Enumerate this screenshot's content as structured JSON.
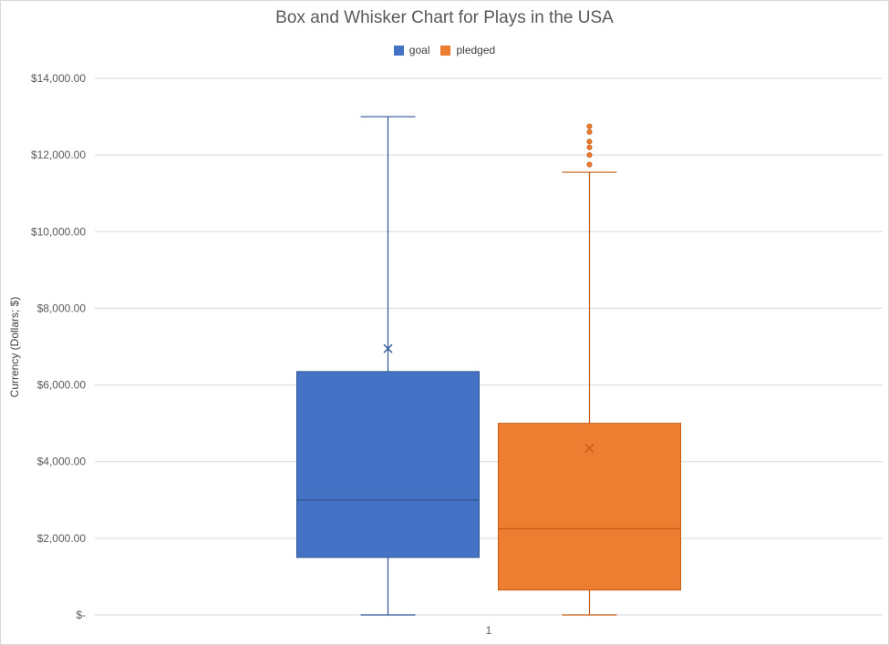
{
  "chart_data": {
    "type": "boxplot",
    "title": "Box and Whisker Chart for Plays in the USA",
    "ylabel": "Currency (Dollars; $)",
    "xlabel": "",
    "categories": [
      "1"
    ],
    "ylim": [
      0,
      14000
    ],
    "yticks": [
      {
        "value": 0,
        "label": "$-"
      },
      {
        "value": 2000,
        "label": "$2,000.00"
      },
      {
        "value": 4000,
        "label": "$4,000.00"
      },
      {
        "value": 6000,
        "label": "$6,000.00"
      },
      {
        "value": 8000,
        "label": "$8,000.00"
      },
      {
        "value": 10000,
        "label": "$10,000.00"
      },
      {
        "value": 12000,
        "label": "$12,000.00"
      },
      {
        "value": 14000,
        "label": "$14,000.00"
      }
    ],
    "grid": true,
    "legend_position": "top",
    "series": [
      {
        "name": "goal",
        "color": "#4472C4",
        "min": 0,
        "q1": 1500,
        "median": 3000,
        "q3": 6350,
        "max": 13000,
        "mean": 6950,
        "outliers": []
      },
      {
        "name": "pledged",
        "color": "#ED7D31",
        "min": 0,
        "q1": 650,
        "median": 2250,
        "q3": 5000,
        "max": 11550,
        "mean": 4350,
        "outliers": [
          11750,
          12000,
          12200,
          12350,
          12600,
          12750
        ]
      }
    ]
  }
}
